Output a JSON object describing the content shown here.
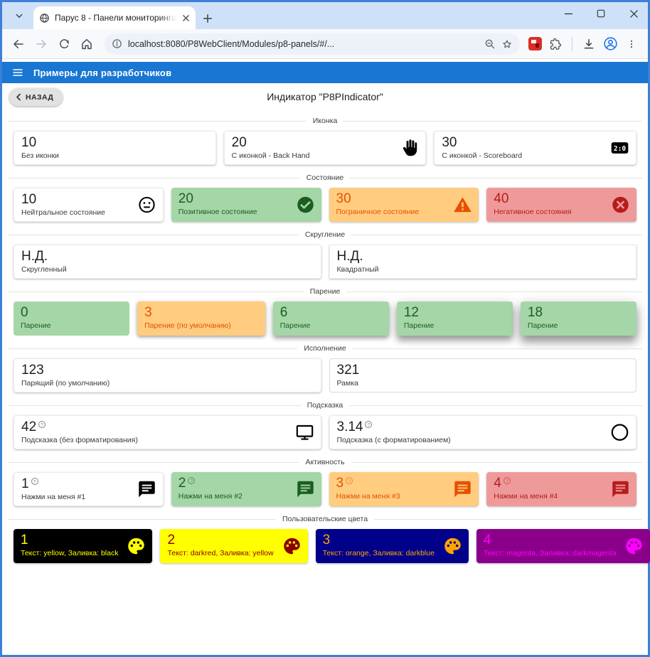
{
  "browser": {
    "tab": {
      "title": "Парус 8 - Панели мониторинга",
      "favicon": "globe-icon"
    },
    "url": "localhost:8080/P8WebClient/Modules/p8-panels/#/...",
    "toolbar_icons": [
      "back",
      "forward",
      "reload",
      "home",
      "page-info",
      "zoom",
      "bookmark-star",
      "extension-red",
      "extensions-puzzle",
      "download",
      "profile",
      "menu"
    ]
  },
  "app_bar": {
    "title": "Примеры для разработчиков",
    "color": "#1976d2"
  },
  "page": {
    "back_label": "НАЗАД",
    "title": "Индикатор \"P8PIndicator\""
  },
  "status_colors": {
    "neutral": {
      "bg": "#ffffff",
      "fg": "#1f1f1f"
    },
    "positive": {
      "bg": "#a5d6a7",
      "fg": "#1b5e20"
    },
    "warning": {
      "bg": "#ffcc80",
      "fg": "#e65100"
    },
    "negative": {
      "bg": "#ef9a9a",
      "fg": "#b71c1c"
    }
  },
  "sections": [
    {
      "label": "Иконка",
      "cols": 3,
      "cards": [
        {
          "value": "10",
          "caption": "Без иконки"
        },
        {
          "value": "20",
          "caption": "С иконкой - Back Hand",
          "icon": "back-hand"
        },
        {
          "value": "30",
          "caption": "С иконкой - Scoreboard",
          "icon": "scoreboard"
        }
      ]
    },
    {
      "label": "Состояние",
      "cols": 4,
      "cards": [
        {
          "value": "10",
          "caption": "Нейтральное состояние",
          "icon": "sentiment-neutral",
          "state": "neutral"
        },
        {
          "value": "20",
          "caption": "Позитивное состояние",
          "icon": "check-circle",
          "state": "positive"
        },
        {
          "value": "30",
          "caption": "Пограничное состояние",
          "icon": "warning",
          "state": "warning"
        },
        {
          "value": "40",
          "caption": "Негативное состояния",
          "icon": "cancel",
          "state": "negative"
        }
      ]
    },
    {
      "label": "Скругление",
      "cols": 2,
      "cards": [
        {
          "value": "Н.Д.",
          "caption": "Скругленный"
        },
        {
          "value": "Н.Д.",
          "caption": "Квадратный",
          "square": true
        }
      ]
    },
    {
      "label": "Парение",
      "cols": 5,
      "cards": [
        {
          "value": "0",
          "caption": "Парение",
          "state": "positive",
          "elevation": 0
        },
        {
          "value": "3",
          "caption": "Парение (по умолчанию)",
          "state": "warning",
          "elevation": 3
        },
        {
          "value": "6",
          "caption": "Парение",
          "state": "positive",
          "elevation": 6
        },
        {
          "value": "12",
          "caption": "Парение",
          "state": "positive",
          "elevation": 12
        },
        {
          "value": "18",
          "caption": "Парение",
          "state": "positive",
          "elevation": 18
        }
      ]
    },
    {
      "label": "Исполнение",
      "cols": 2,
      "cards": [
        {
          "value": "123",
          "caption": "Парящий (по умолчанию)"
        },
        {
          "value": "321",
          "caption": "Рамка",
          "outlined": true
        }
      ]
    },
    {
      "label": "Подсказка",
      "cols": 2,
      "cards": [
        {
          "value": "42",
          "caption": "Подсказка (без форматирования)",
          "icon": "monitor",
          "help": true
        },
        {
          "value": "3.14",
          "caption": "Подсказка (с форматированием)",
          "icon": "circle",
          "help": true
        }
      ]
    },
    {
      "label": "Активность",
      "cols": 4,
      "clickable": true,
      "cards": [
        {
          "value": "1",
          "caption": "Нажми на меня #1",
          "icon": "message",
          "help": true,
          "state": "neutral"
        },
        {
          "value": "2",
          "caption": "Нажми на меня #2",
          "icon": "message",
          "help": true,
          "state": "positive"
        },
        {
          "value": "3",
          "caption": "Нажми на меня #3",
          "icon": "message",
          "help": true,
          "state": "warning"
        },
        {
          "value": "4",
          "caption": "Нажми на меня #4",
          "icon": "message",
          "help": true,
          "state": "negative"
        }
      ]
    },
    {
      "label": "Пользовательские цвета",
      "cols": 4,
      "cards": [
        {
          "value": "1",
          "caption": "Текст: yellow, Заливка: black",
          "icon": "palette",
          "colors": {
            "fg": "yellow",
            "bg": "black"
          }
        },
        {
          "value": "2",
          "caption": "Текст: darkred, Заливка: yellow",
          "icon": "palette",
          "colors": {
            "fg": "darkred",
            "bg": "yellow"
          }
        },
        {
          "value": "3",
          "caption": "Текст: orange, Заливка: darkblue",
          "icon": "palette",
          "colors": {
            "fg": "orange",
            "bg": "darkblue"
          }
        },
        {
          "value": "4",
          "caption": "Текст: magenta, Заливка: darkmagenta",
          "icon": "palette",
          "colors": {
            "fg": "magenta",
            "bg": "darkmagenta"
          }
        }
      ]
    }
  ]
}
